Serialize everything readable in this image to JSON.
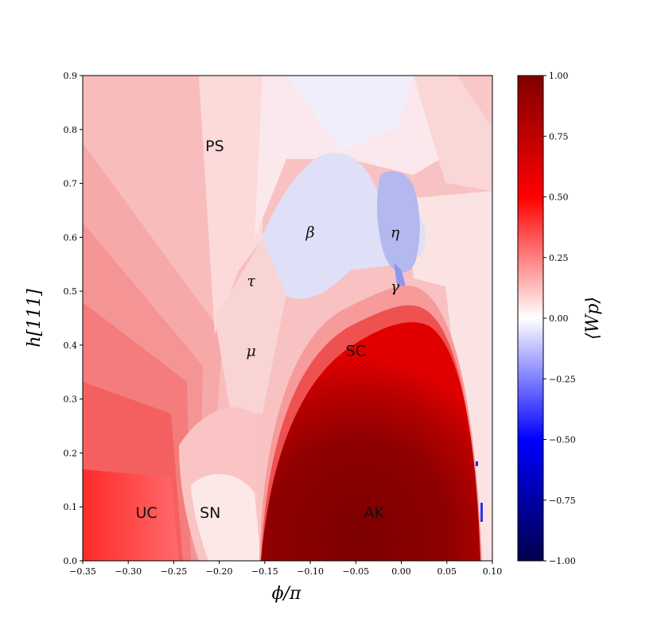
{
  "chart_data": {
    "type": "heatmap",
    "title": "",
    "xlabel": "ϕ/π",
    "ylabel": "h[111]",
    "xlim": [
      -0.35,
      0.1
    ],
    "ylim": [
      0.0,
      0.9
    ],
    "xticks": [
      "−0.35",
      "−0.30",
      "−0.25",
      "−0.20",
      "−0.15",
      "−0.10",
      "−0.05",
      "0.00",
      "0.05",
      "0.10"
    ],
    "xtick_values": [
      -0.35,
      -0.3,
      -0.25,
      -0.2,
      -0.15,
      -0.1,
      -0.05,
      0.0,
      0.05,
      0.1
    ],
    "yticks": [
      "0.0",
      "0.1",
      "0.2",
      "0.3",
      "0.4",
      "0.5",
      "0.6",
      "0.7",
      "0.8",
      "0.9"
    ],
    "ytick_values": [
      0.0,
      0.1,
      0.2,
      0.3,
      0.4,
      0.5,
      0.6,
      0.7,
      0.8,
      0.9
    ],
    "colorbar": {
      "label": "⟨W_p⟩",
      "label_display": "⟨Wp⟩",
      "range": [
        -1.0,
        1.0
      ],
      "ticks": [
        "−1.00",
        "−0.75",
        "−0.50",
        "−0.25",
        "0.00",
        "0.25",
        "0.50",
        "0.75",
        "1.00"
      ],
      "tick_values": [
        -1.0,
        -0.75,
        -0.5,
        -0.25,
        0.0,
        0.25,
        0.5,
        0.75,
        1.0
      ],
      "colormap": "seismic",
      "colors": {
        "low": "#00004c",
        "mid": "#ffffff",
        "high": "#800000"
      }
    },
    "regions": [
      {
        "label": "PS",
        "x": -0.205,
        "y": 0.77,
        "value": 0.15,
        "style": "sans"
      },
      {
        "label": "β",
        "x": -0.1,
        "y": 0.61,
        "value": -0.12,
        "style": "greek"
      },
      {
        "label": "η",
        "x": -0.007,
        "y": 0.61,
        "value": -0.3,
        "style": "greek"
      },
      {
        "label": "τ",
        "x": -0.165,
        "y": 0.52,
        "value": 0.05,
        "style": "greek"
      },
      {
        "label": "γ",
        "x": -0.007,
        "y": 0.51,
        "value": -0.2,
        "style": "greek"
      },
      {
        "label": "μ",
        "x": -0.165,
        "y": 0.39,
        "value": 0.1,
        "style": "greek"
      },
      {
        "label": "SC",
        "x": -0.05,
        "y": 0.39,
        "value": 0.5,
        "style": "sans"
      },
      {
        "label": "UC",
        "x": -0.28,
        "y": 0.09,
        "value": 0.6,
        "style": "sans"
      },
      {
        "label": "SN",
        "x": -0.21,
        "y": 0.09,
        "value": 0.05,
        "style": "sans"
      },
      {
        "label": "AK",
        "x": -0.03,
        "y": 0.09,
        "value": 0.95,
        "style": "sans"
      }
    ]
  }
}
